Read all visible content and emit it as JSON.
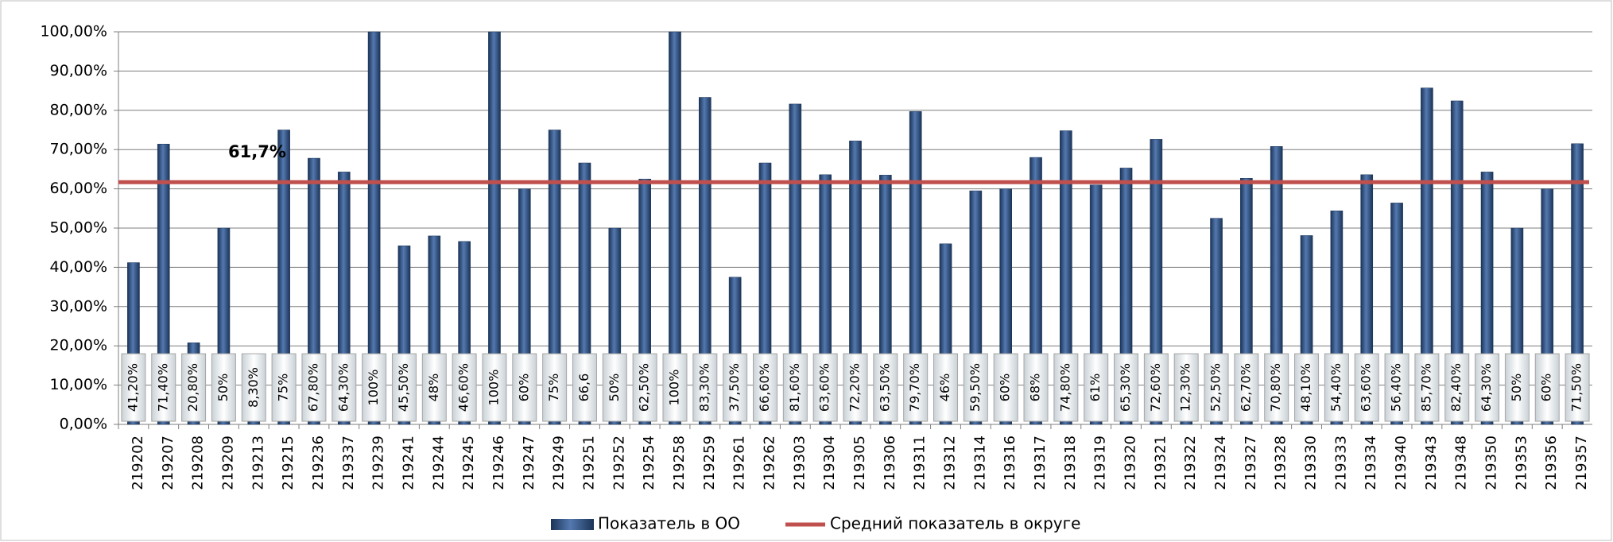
{
  "chart_data": {
    "type": "bar",
    "categories": [
      "219202",
      "219207",
      "219208",
      "219209",
      "219213",
      "219215",
      "219236",
      "219337",
      "219239",
      "219241",
      "219244",
      "219245",
      "219246",
      "219247",
      "219249",
      "219251",
      "219252",
      "219254",
      "219258",
      "219259",
      "219261",
      "219262",
      "219303",
      "219304",
      "219305",
      "219306",
      "219311",
      "219312",
      "219314",
      "219316",
      "219317",
      "219318",
      "219319",
      "219320",
      "219321",
      "219322",
      "219324",
      "219327",
      "219328",
      "219330",
      "219333",
      "219334",
      "219340",
      "219343",
      "219348",
      "219350",
      "219353",
      "219356",
      "219357"
    ],
    "series": [
      {
        "name": "Показатель в ОО",
        "color": "#2c4f80",
        "values": [
          41.2,
          71.4,
          20.8,
          50,
          8.3,
          75,
          67.8,
          64.3,
          100,
          45.5,
          48,
          46.6,
          100,
          60,
          75,
          66.6,
          50,
          62.5,
          100,
          83.3,
          37.5,
          66.6,
          81.6,
          63.6,
          72.2,
          63.5,
          79.7,
          46,
          59.5,
          60,
          68,
          74.8,
          61,
          65.3,
          72.6,
          12.3,
          52.5,
          62.7,
          70.8,
          48.1,
          54.4,
          63.6,
          56.4,
          85.7,
          82.4,
          64.3,
          50,
          60,
          71.5
        ],
        "value_labels": [
          "41,20%",
          "71,40%",
          "20,80%",
          "50%",
          "8,30%",
          "75%",
          "67,80%",
          "64,30%",
          "100%",
          "45,50%",
          "48%",
          "46,60%",
          "100%",
          "60%",
          "75%",
          "66,6",
          "50%",
          "62,50%",
          "100%",
          "83,30%",
          "37,50%",
          "66,60%",
          "81,60%",
          "63,60%",
          "72,20%",
          "63,50%",
          "79,70%",
          "46%",
          "59,50%",
          "60%",
          "68%",
          "74,80%",
          "61%",
          "65,30%",
          "72,60%",
          "12,30%",
          "52,50%",
          "62,70%",
          "70,80%",
          "48,10%",
          "54,40%",
          "63,60%",
          "56,40%",
          "85,70%",
          "82,40%",
          "64,30%",
          "50%",
          "60%",
          "71,50%"
        ]
      }
    ],
    "reference_line": {
      "name": "Средний показатель в округе",
      "value": 61.7,
      "label": "61,7%",
      "color": "#c0504d"
    },
    "ylim": [
      0,
      100
    ],
    "yticks": [
      {
        "value": 0,
        "label": "0,00%"
      },
      {
        "value": 10,
        "label": "10,00%"
      },
      {
        "value": 20,
        "label": "20,00%"
      },
      {
        "value": 30,
        "label": "30,00%"
      },
      {
        "value": 40,
        "label": "40,00%"
      },
      {
        "value": 50,
        "label": "50,00%"
      },
      {
        "value": 60,
        "label": "60,00%"
      },
      {
        "value": 70,
        "label": "70,00%"
      },
      {
        "value": 80,
        "label": "80,00%"
      },
      {
        "value": 90,
        "label": "90,00%"
      },
      {
        "value": 100,
        "label": "100,00%"
      }
    ],
    "grid": true
  }
}
